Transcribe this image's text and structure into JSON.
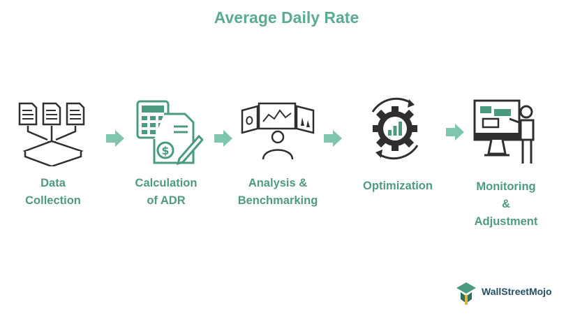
{
  "title": "Average Daily Rate",
  "steps": [
    {
      "label": "Data\nCollection",
      "icon": "documents-funnel-icon"
    },
    {
      "label": "Calculation\nof ADR",
      "icon": "calculator-invoice-icon"
    },
    {
      "label": "Analysis &\nBenchmarking",
      "icon": "analyst-screens-icon"
    },
    {
      "label": "Optimization",
      "icon": "gear-chart-icon"
    },
    {
      "label": "Monitoring\n&\nAdjustment",
      "icon": "presenter-monitor-icon"
    }
  ],
  "arrow_icon": "right-arrow-icon",
  "brand": {
    "name": "WallStreetMojo"
  },
  "colors": {
    "accent": "#5aab93",
    "arrow": "#7fc6ae",
    "icon_dark": "#2f2f2f",
    "icon_teal": "#4a9a82",
    "brand_text": "#244f66"
  }
}
